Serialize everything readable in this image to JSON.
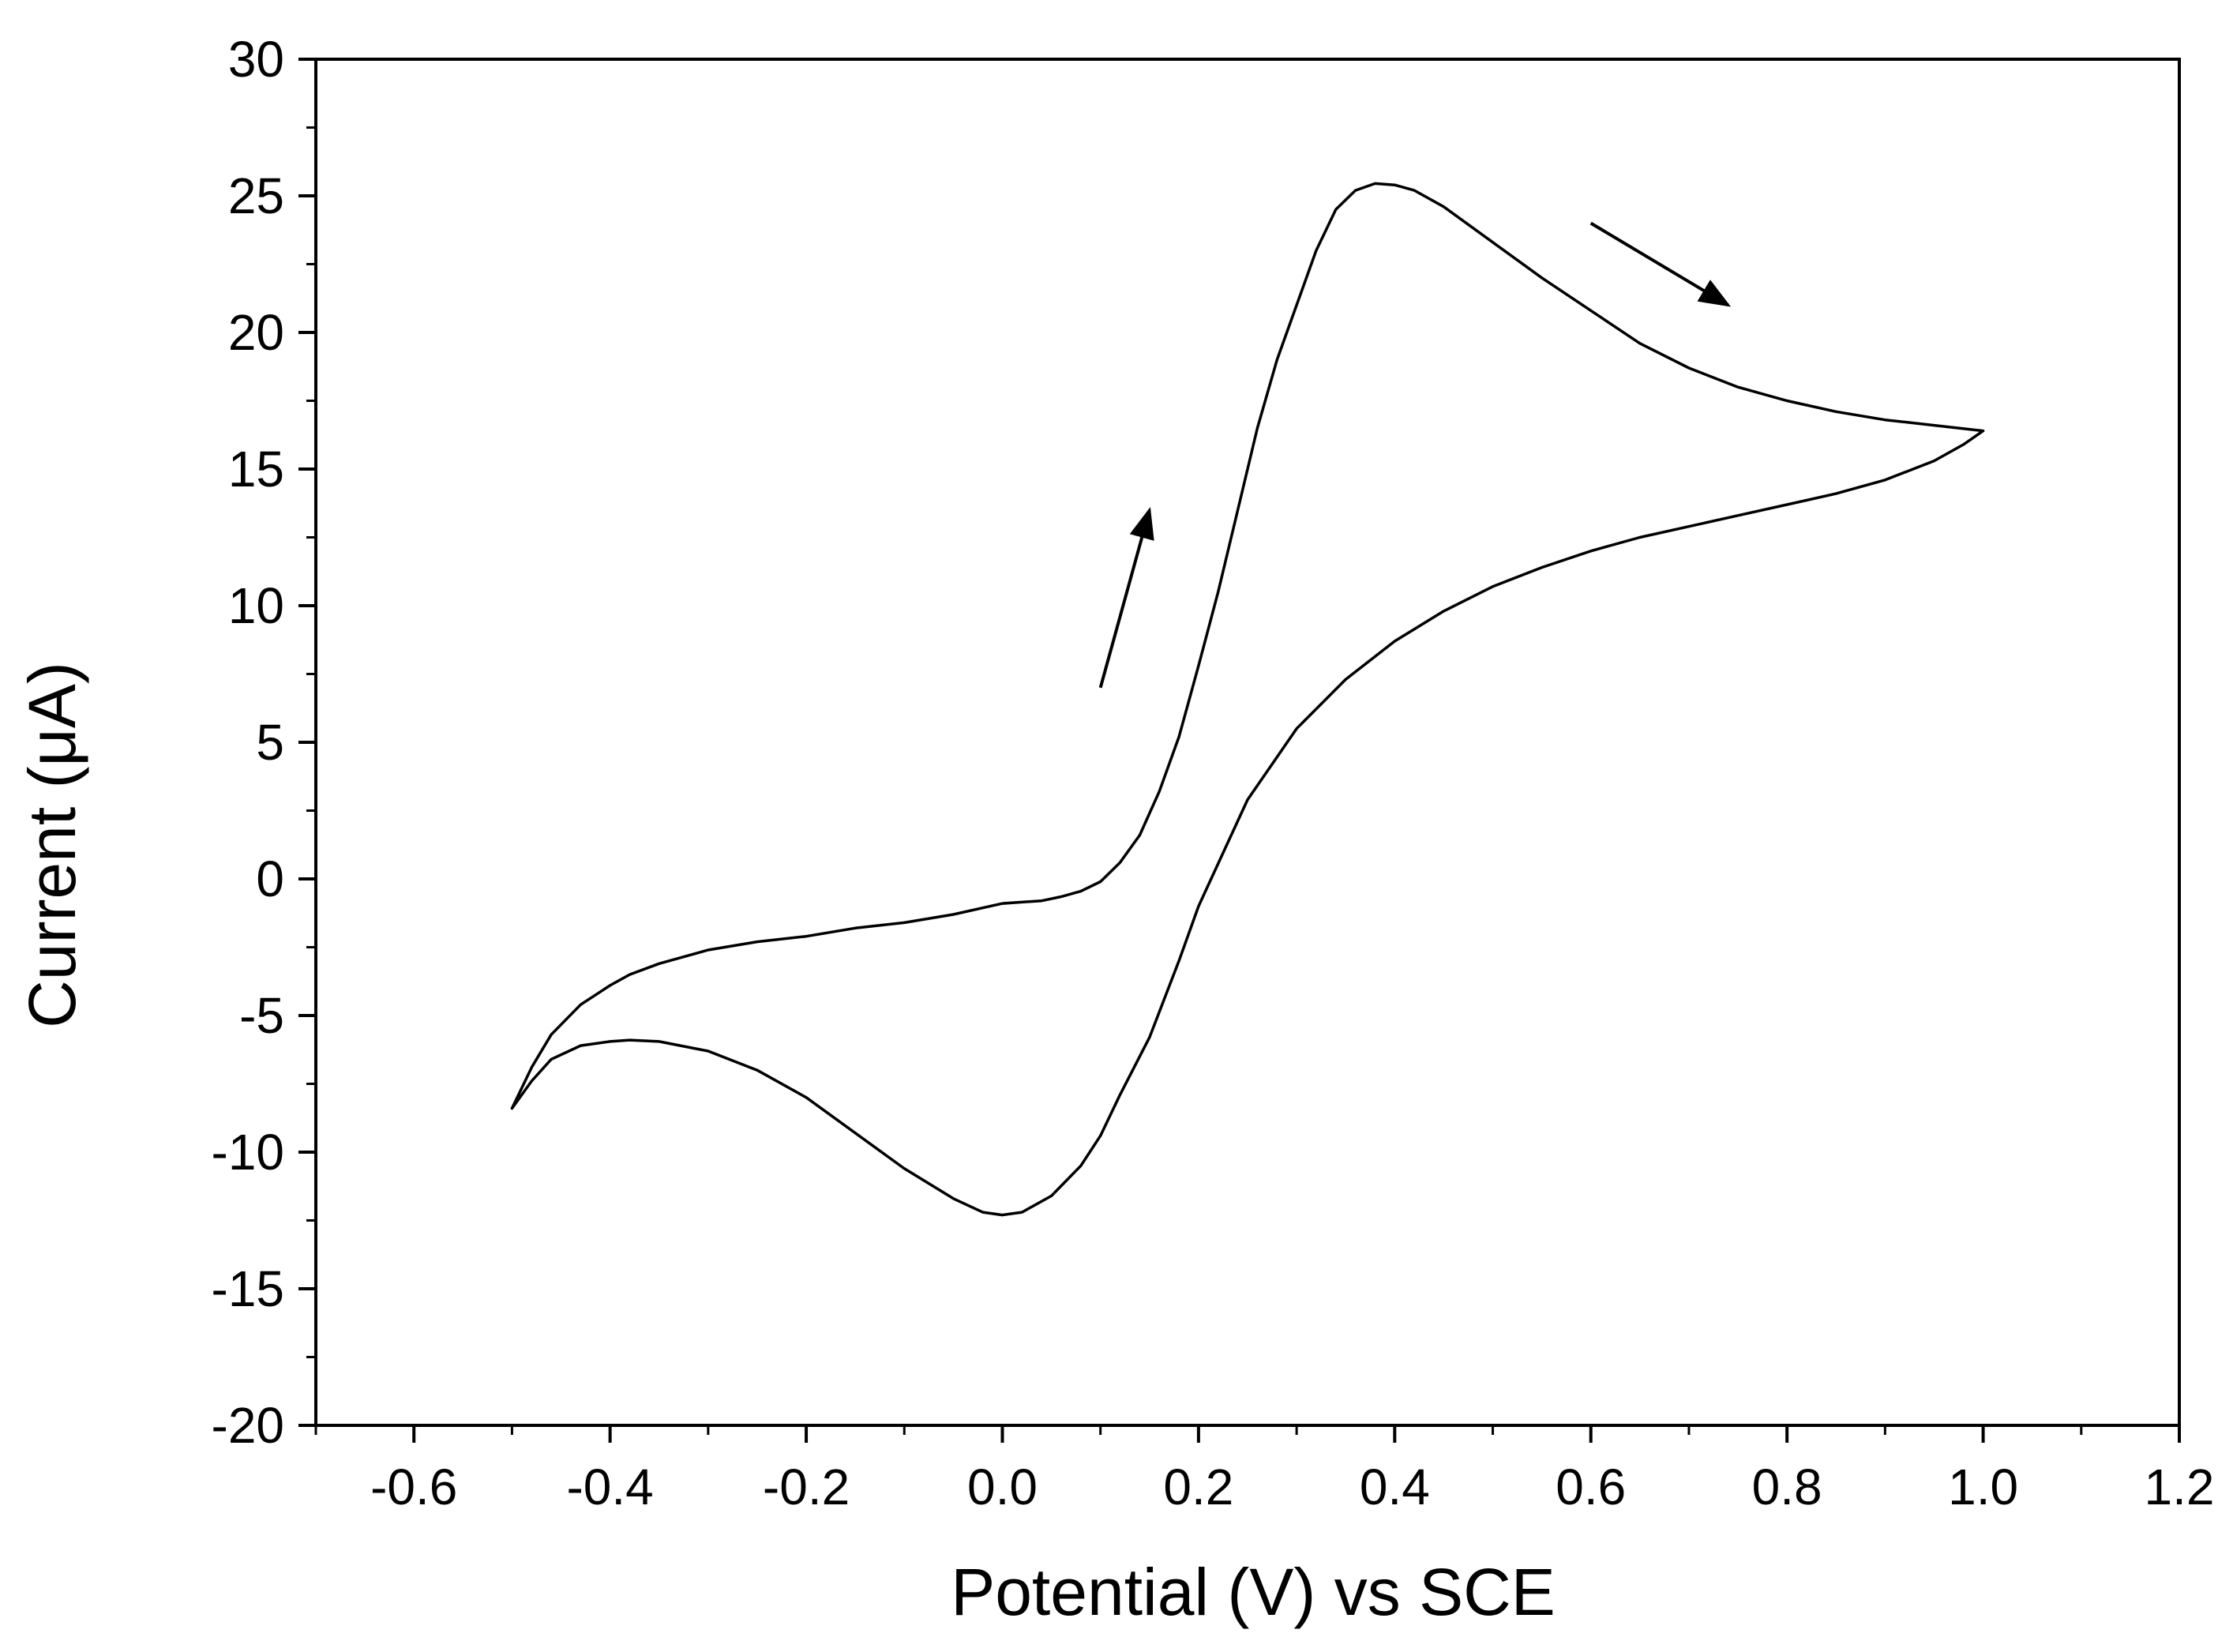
{
  "chart_data": {
    "type": "line",
    "xlabel": "Potential (V) vs SCE",
    "ylabel": "Current (μA)",
    "xlim": [
      -0.7,
      1.2
    ],
    "ylim": [
      -20,
      30
    ],
    "x_ticks": [
      -0.6,
      -0.4,
      -0.2,
      0.0,
      0.2,
      0.4,
      0.6,
      0.8,
      1.0,
      1.2
    ],
    "x_tick_labels": [
      "-0.6",
      "-0.4",
      "-0.2",
      "0.0",
      "0.2",
      "0.4",
      "0.6",
      "0.8",
      "1.0",
      "1.2"
    ],
    "y_ticks": [
      -20,
      -15,
      -10,
      -5,
      0,
      5,
      10,
      15,
      20,
      25,
      30
    ],
    "y_tick_labels": [
      "-20",
      "-15",
      "-10",
      "-5",
      "0",
      "5",
      "10",
      "15",
      "20",
      "25",
      "30"
    ],
    "grid": false,
    "line_color": "#000000",
    "series": [
      {
        "points": [
          [
            0.0,
            -0.9
          ],
          [
            -0.05,
            -1.3
          ],
          [
            -0.1,
            -1.6
          ],
          [
            -0.15,
            -1.8
          ],
          [
            -0.2,
            -2.1
          ],
          [
            -0.25,
            -2.3
          ],
          [
            -0.3,
            -2.6
          ],
          [
            -0.35,
            -3.1
          ],
          [
            -0.38,
            -3.5
          ],
          [
            -0.4,
            -3.9
          ],
          [
            -0.43,
            -4.6
          ],
          [
            -0.46,
            -5.7
          ],
          [
            -0.48,
            -6.9
          ],
          [
            -0.5,
            -8.4
          ],
          [
            -0.48,
            -7.4
          ],
          [
            -0.46,
            -6.6
          ],
          [
            -0.43,
            -6.1
          ],
          [
            -0.4,
            -5.95
          ],
          [
            -0.38,
            -5.9
          ],
          [
            -0.35,
            -5.95
          ],
          [
            -0.3,
            -6.3
          ],
          [
            -0.25,
            -7.0
          ],
          [
            -0.2,
            -8.0
          ],
          [
            -0.15,
            -9.3
          ],
          [
            -0.1,
            -10.6
          ],
          [
            -0.05,
            -11.7
          ],
          [
            -0.02,
            -12.2
          ],
          [
            0.0,
            -12.3
          ],
          [
            0.02,
            -12.2
          ],
          [
            0.05,
            -11.6
          ],
          [
            0.08,
            -10.5
          ],
          [
            0.1,
            -9.4
          ],
          [
            0.12,
            -7.9
          ],
          [
            0.15,
            -5.8
          ],
          [
            0.18,
            -3.0
          ],
          [
            0.2,
            -1.0
          ],
          [
            0.25,
            2.9
          ],
          [
            0.3,
            5.5
          ],
          [
            0.35,
            7.3
          ],
          [
            0.4,
            8.7
          ],
          [
            0.45,
            9.8
          ],
          [
            0.5,
            10.7
          ],
          [
            0.55,
            11.4
          ],
          [
            0.6,
            12.0
          ],
          [
            0.65,
            12.5
          ],
          [
            0.7,
            12.9
          ],
          [
            0.75,
            13.3
          ],
          [
            0.8,
            13.7
          ],
          [
            0.85,
            14.1
          ],
          [
            0.9,
            14.6
          ],
          [
            0.95,
            15.3
          ],
          [
            0.98,
            15.9
          ],
          [
            1.0,
            16.4
          ],
          [
            0.95,
            16.6
          ],
          [
            0.9,
            16.8
          ],
          [
            0.85,
            17.1
          ],
          [
            0.8,
            17.5
          ],
          [
            0.75,
            18.0
          ],
          [
            0.7,
            18.7
          ],
          [
            0.65,
            19.6
          ],
          [
            0.6,
            20.8
          ],
          [
            0.55,
            22.0
          ],
          [
            0.5,
            23.3
          ],
          [
            0.45,
            24.6
          ],
          [
            0.42,
            25.2
          ],
          [
            0.4,
            25.4
          ],
          [
            0.38,
            25.45
          ],
          [
            0.36,
            25.2
          ],
          [
            0.34,
            24.5
          ],
          [
            0.32,
            23.0
          ],
          [
            0.3,
            21.0
          ],
          [
            0.28,
            19.0
          ],
          [
            0.26,
            16.5
          ],
          [
            0.24,
            13.5
          ],
          [
            0.22,
            10.5
          ],
          [
            0.2,
            7.8
          ],
          [
            0.18,
            5.2
          ],
          [
            0.16,
            3.2
          ],
          [
            0.14,
            1.6
          ],
          [
            0.12,
            0.6
          ],
          [
            0.1,
            -0.1
          ],
          [
            0.08,
            -0.45
          ],
          [
            0.06,
            -0.65
          ],
          [
            0.04,
            -0.8
          ],
          [
            0.02,
            -0.85
          ],
          [
            0.0,
            -0.9
          ]
        ]
      }
    ],
    "annotations": [
      {
        "type": "arrow",
        "from": [
          0.1,
          7.0
        ],
        "to": [
          0.15,
          13.5
        ]
      },
      {
        "type": "arrow",
        "from": [
          0.6,
          24.0
        ],
        "to": [
          0.74,
          21.0
        ]
      }
    ]
  }
}
